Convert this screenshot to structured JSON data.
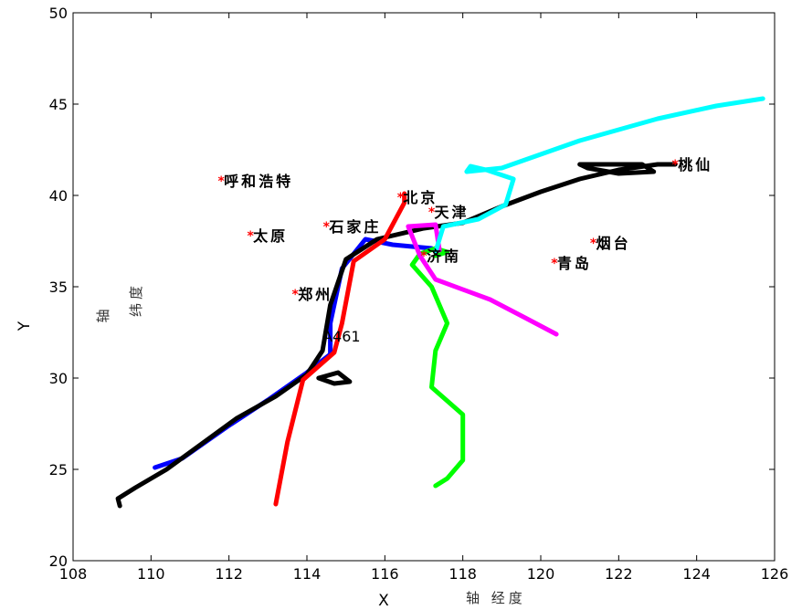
{
  "chart_data": {
    "type": "line",
    "title": "",
    "xlabel": "X",
    "ylabel": "Y",
    "xlim": [
      108,
      126
    ],
    "ylim": [
      20,
      50
    ],
    "x_ticks": [
      108,
      110,
      112,
      114,
      116,
      118,
      120,
      122,
      124,
      126
    ],
    "y_ticks": [
      20,
      25,
      30,
      35,
      40,
      45,
      50
    ],
    "grid": false,
    "annotations": {
      "x_axis_note": "轴 经度",
      "y_axis_note_1": "轴",
      "y_axis_note_2": "纬度",
      "track_id": "A461",
      "track_id_pos": [
        114.4,
        32
      ]
    },
    "cities": [
      {
        "name": "呼和浩特",
        "lon": 111.8,
        "lat": 40.8
      },
      {
        "name": "太原",
        "lon": 112.55,
        "lat": 37.8
      },
      {
        "name": "石家庄",
        "lon": 114.5,
        "lat": 38.3
      },
      {
        "name": "北京",
        "lon": 116.4,
        "lat": 39.9
      },
      {
        "name": "天津",
        "lon": 117.2,
        "lat": 39.1
      },
      {
        "name": "郑州",
        "lon": 113.7,
        "lat": 34.6
      },
      {
        "name": "济南",
        "lon": 117.0,
        "lat": 36.7
      },
      {
        "name": "青岛",
        "lon": 120.35,
        "lat": 36.3
      },
      {
        "name": "烟台",
        "lon": 121.35,
        "lat": 37.4
      },
      {
        "name": "桃仙",
        "lon": 123.45,
        "lat": 41.7
      }
    ],
    "series": [
      {
        "color": "#0000ff",
        "points": [
          [
            110.1,
            25.1
          ],
          [
            110.8,
            25.6
          ],
          [
            112.0,
            27.4
          ],
          [
            113.0,
            28.8
          ],
          [
            114.0,
            30.3
          ],
          [
            114.6,
            31.3
          ],
          [
            114.6,
            33.0
          ],
          [
            114.9,
            36.0
          ],
          [
            115.5,
            37.6
          ],
          [
            116.2,
            37.3
          ],
          [
            117.2,
            37.1
          ]
        ]
      },
      {
        "color": "#000000",
        "points": [
          [
            109.2,
            23.0
          ],
          [
            109.15,
            23.4
          ],
          [
            109.6,
            24.0
          ],
          [
            110.4,
            25.0
          ],
          [
            111.3,
            26.4
          ],
          [
            112.2,
            27.8
          ],
          [
            113.2,
            29.0
          ],
          [
            114.0,
            30.2
          ],
          [
            114.4,
            31.5
          ],
          [
            114.6,
            34.0
          ],
          [
            115.0,
            36.5
          ],
          [
            115.8,
            37.6
          ],
          [
            117.0,
            38.2
          ],
          [
            118.0,
            38.5
          ],
          [
            119.0,
            39.4
          ],
          [
            120.0,
            40.2
          ],
          [
            121.0,
            40.9
          ],
          [
            122.0,
            41.4
          ],
          [
            123.0,
            41.7
          ],
          [
            123.45,
            41.7
          ]
        ]
      },
      {
        "color": "#000000",
        "points": [
          [
            121.0,
            41.7
          ],
          [
            122.6,
            41.7
          ],
          [
            122.9,
            41.3
          ],
          [
            122.0,
            41.2
          ],
          [
            121.2,
            41.5
          ],
          [
            121.0,
            41.7
          ]
        ]
      },
      {
        "color": "#000000",
        "points": [
          [
            114.3,
            30.0
          ],
          [
            114.8,
            30.3
          ],
          [
            115.1,
            29.8
          ],
          [
            114.7,
            29.7
          ],
          [
            114.3,
            30.0
          ]
        ]
      },
      {
        "color": "#ff0000",
        "points": [
          [
            113.2,
            23.1
          ],
          [
            113.5,
            26.5
          ],
          [
            113.9,
            29.9
          ],
          [
            114.7,
            31.4
          ],
          [
            114.9,
            33.0
          ],
          [
            115.2,
            36.4
          ],
          [
            116.0,
            37.6
          ],
          [
            116.5,
            39.6
          ],
          [
            116.5,
            40.1
          ]
        ]
      },
      {
        "color": "#00ff00",
        "points": [
          [
            116.9,
            36.8
          ],
          [
            116.7,
            36.2
          ],
          [
            117.2,
            35.0
          ],
          [
            117.6,
            33.0
          ],
          [
            117.3,
            31.5
          ],
          [
            117.2,
            29.5
          ],
          [
            118.0,
            28.0
          ],
          [
            118.0,
            25.5
          ],
          [
            117.6,
            24.5
          ],
          [
            117.3,
            24.1
          ]
        ]
      },
      {
        "color": "#00ff00",
        "points": [
          [
            116.9,
            36.8
          ],
          [
            117.3,
            37.1
          ],
          [
            117.6,
            36.9
          ],
          [
            117.3,
            36.7
          ]
        ]
      },
      {
        "color": "#ff00ff",
        "points": [
          [
            120.4,
            32.4
          ],
          [
            119.6,
            33.3
          ],
          [
            118.7,
            34.3
          ],
          [
            117.3,
            35.4
          ],
          [
            116.9,
            36.7
          ],
          [
            116.6,
            38.3
          ],
          [
            117.3,
            38.4
          ],
          [
            117.4,
            37.0
          ]
        ]
      },
      {
        "color": "#00ffff",
        "points": [
          [
            117.3,
            36.9
          ],
          [
            117.5,
            38.3
          ],
          [
            118.4,
            38.7
          ],
          [
            119.1,
            39.5
          ],
          [
            119.3,
            40.9
          ],
          [
            118.6,
            41.4
          ],
          [
            118.2,
            41.6
          ],
          [
            118.1,
            41.3
          ],
          [
            119.0,
            41.5
          ],
          [
            121.0,
            43.0
          ],
          [
            123.0,
            44.2
          ],
          [
            124.5,
            44.9
          ],
          [
            125.7,
            45.3
          ]
        ]
      }
    ]
  }
}
